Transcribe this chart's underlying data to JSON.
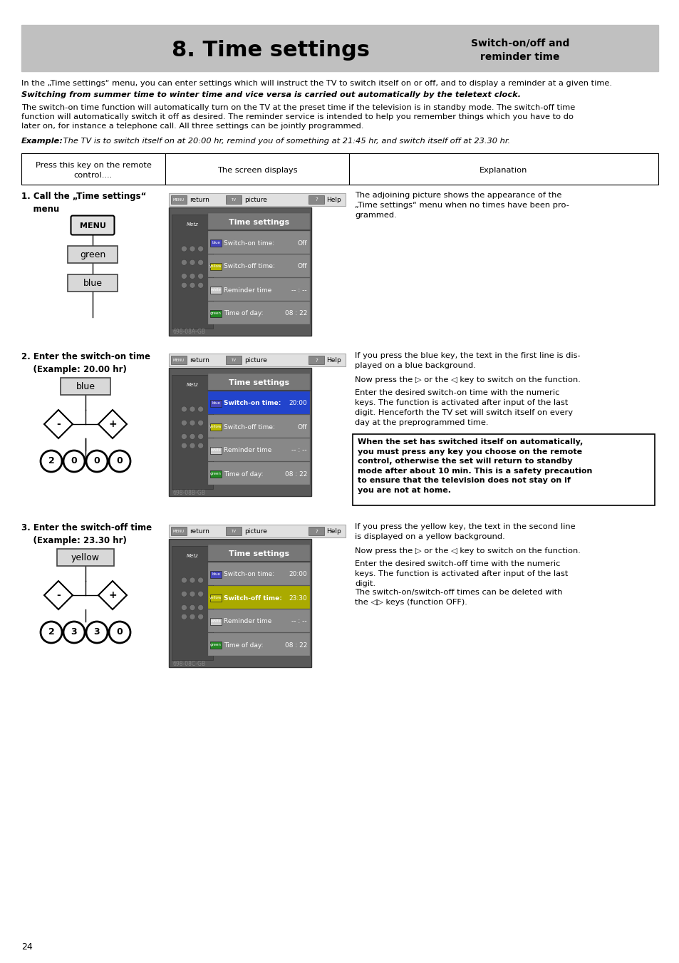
{
  "title": "8. Time settings",
  "subtitle_right": "Switch-on/off and\nreminder time",
  "header_bg": "#c0c0c0",
  "page_bg": "#ffffff",
  "page_number": "24",
  "intro_text1": "In the „Time settings“ menu, you can enter settings which will instruct the TV to switch itself on or off, and to display a reminder at a given time.",
  "intro_bold": "Switching from summer time to winter time and vice versa is carried out automatically by the teletext clock.",
  "intro_para2_line1": "The switch-on time function will automatically turn on the TV at the preset time if the television is in standby mode. The switch-off time",
  "intro_para2_line2": "function will automatically switch it off as desired. The reminder service is intended to help you remember things which you have to do",
  "intro_para2_line3": "later on, for instance a telephone call. All three settings can be jointly programmed.",
  "example_bold": "Example:",
  "example_italic": " The TV is to switch itself on at 20:00 hr, remind you of something at 21:45 hr, and switch itself off at 23.30 hr.",
  "col1_header": "Press this key on the remote\ncontrol....",
  "col2_header": "The screen displays",
  "col3_header": "Explanation",
  "sec1_title": "1. Call the „Time settings“\n    menu",
  "sec1_exp": "The adjoining picture shows the appearance of the\n„Time settings“ menu when no times have been pro-\ngrammed.",
  "sec2_title": "2. Enter the switch-on time\n    (Example: 20.00 hr)",
  "sec2_exp1": "If you press the blue key, the text in the first line is dis-\nplayed on a blue background.",
  "sec2_exp2": "Now press the ▷ or the ◁ key to switch on the function.",
  "sec2_exp3": "Enter the desired switch-on time with the numeric\nkeys. The function is activated after input of the last\ndigit. Henceforth the TV set will switch itself on every\nday at the preprogrammed time.",
  "sec2_warn": "When the set has switched itself on automatically,\nyou must press any key you choose on the remote\ncontrol, otherwise the set will return to standby\nmode after about 10 min. This is a safety precaution\nto ensure that the television does not stay on if\nyou are not at home.",
  "sec3_title": "3. Enter the switch-off time\n    (Example: 23.30 hr)",
  "sec3_exp1": "If you press the yellow key, the text in the second line\nis displayed on a yellow background.",
  "sec3_exp2": "Now press the ▷ or the ◁ key to switch on the function.",
  "sec3_exp3": "Enter the desired switch-off time with the numeric\nkeys. The function is activated after input of the last\ndigit.",
  "sec3_exp4": "The switch-on/switch-off times can be deleted with\nthe ◁▷ keys (function OFF).",
  "screen1_rows": [
    {
      "color_btn": "#4444bb",
      "color_lbl": "blue",
      "label": "Switch-on time:",
      "value": "Off",
      "highlight": false
    },
    {
      "color_btn": "#bbbb00",
      "color_lbl": "yellow",
      "label": "Switch-off time:",
      "value": "Off",
      "highlight": false
    },
    {
      "color_btn": "#cccccc",
      "color_lbl": "white",
      "label": "Reminder time",
      "value": "-- : --",
      "highlight": false
    },
    {
      "color_btn": "#228822",
      "color_lbl": "green",
      "label": "Time of day:",
      "value": "08 : 22",
      "highlight": false
    }
  ],
  "screen2_rows": [
    {
      "color_btn": "#4444bb",
      "color_lbl": "blue",
      "label": "Switch-on time:",
      "value": "20:00",
      "highlight": true,
      "hl_color": "#2244cc"
    },
    {
      "color_btn": "#bbbb00",
      "color_lbl": "yellow",
      "label": "Switch-off time:",
      "value": "Off",
      "highlight": false
    },
    {
      "color_btn": "#cccccc",
      "color_lbl": "white",
      "label": "Reminder time",
      "value": "-- : --",
      "highlight": false
    },
    {
      "color_btn": "#228822",
      "color_lbl": "green",
      "label": "Time of day:",
      "value": "08 : 22",
      "highlight": false
    }
  ],
  "screen3_rows": [
    {
      "color_btn": "#4444bb",
      "color_lbl": "blue",
      "label": "Switch-on time:",
      "value": "20:00",
      "highlight": false
    },
    {
      "color_btn": "#bbbb00",
      "color_lbl": "yellow",
      "label": "Switch-off time:",
      "value": "23:30",
      "highlight": true,
      "hl_color": "#aaaa00"
    },
    {
      "color_btn": "#cccccc",
      "color_lbl": "white",
      "label": "Reminder time",
      "value": "-- : --",
      "highlight": false
    },
    {
      "color_btn": "#228822",
      "color_lbl": "green",
      "label": "Time of day:",
      "value": "08 : 22",
      "highlight": false
    }
  ],
  "img_codes": [
    "698-08A-GB",
    "698-08B-GB",
    "698-08C-GB"
  ],
  "nav_bar_bg": "#e0e0e0",
  "menu_title_bg": "#888888",
  "tv_body_bg": "#666666",
  "menu_bg": "#999999",
  "row_bg": "#888888",
  "row_sep": "#aaaaaa"
}
